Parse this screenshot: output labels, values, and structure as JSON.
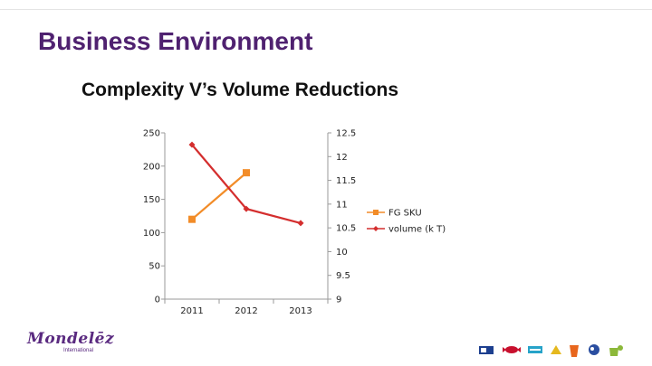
{
  "slide": {
    "title": "Business Environment",
    "subtitle": "Complexity V’s Volume Reductions"
  },
  "chart_data": {
    "type": "line",
    "categories": [
      "2011",
      "2012",
      "2013"
    ],
    "series": [
      {
        "name": "FG SKU",
        "axis": "left",
        "color": "#f28c28",
        "marker": "square",
        "values": [
          120,
          190,
          null
        ]
      },
      {
        "name": "volume (k T)",
        "axis": "right",
        "color": "#d42e2e",
        "marker": "diamond",
        "values": [
          12.25,
          10.9,
          10.6
        ]
      }
    ],
    "left_axis": {
      "min": 0,
      "max": 250,
      "ticks": [
        0,
        50,
        100,
        150,
        200,
        250
      ],
      "tick_labels": [
        "0",
        "50",
        "100",
        "150",
        "200",
        "250"
      ]
    },
    "right_axis": {
      "min": 9,
      "max": 12.5,
      "ticks": [
        9,
        9.5,
        10,
        10.5,
        11,
        11.5,
        12,
        12.5
      ],
      "tick_labels": [
        "9",
        "9.5",
        "10",
        "10.5",
        "11",
        "11.5",
        "12",
        "12.5"
      ]
    },
    "title": "",
    "xlabel": "",
    "ylabel": "",
    "grid": false,
    "legend": "right"
  },
  "logo": {
    "name": "Mondelēz",
    "tagline": "International"
  },
  "colors": {
    "title": "#4f2170",
    "fg_sku": "#f28c28",
    "volume": "#d42e2e"
  },
  "brand_icons": [
    "biscuit-icon",
    "candy-icon",
    "gum-icon",
    "cheese-icon",
    "drink-icon",
    "coffee-icon"
  ]
}
